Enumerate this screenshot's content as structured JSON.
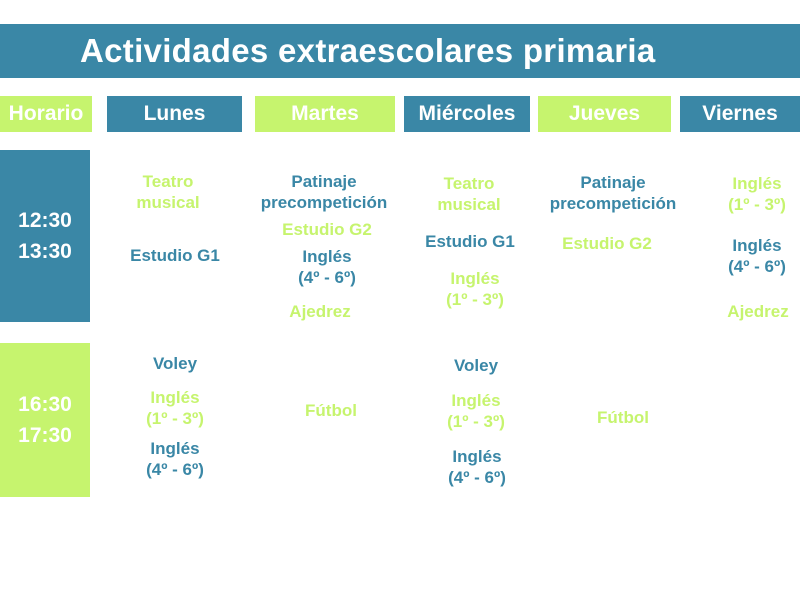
{
  "title": "Actividades extraescolares  primaria",
  "headers": {
    "horario": "Horario",
    "lunes": "Lunes",
    "martes": "Martes",
    "miercoles": "Miércoles",
    "jueves": "Jueves",
    "viernes": "Viernes"
  },
  "times": {
    "midday": {
      "start": "12:30",
      "end": "13:30"
    },
    "afternoon": {
      "start": "16:30",
      "end": "17:30"
    }
  },
  "colors": {
    "blue": "#3a87a6",
    "green": "#c6f46e"
  },
  "midday": {
    "lunes": [
      {
        "text": "Teatro\nmusical",
        "color": "green"
      },
      {
        "text": "Estudio G1",
        "color": "blue"
      }
    ],
    "martes": [
      {
        "text": "Patinaje\nprecompetición",
        "color": "blue"
      },
      {
        "text": "Estudio G2",
        "color": "green"
      },
      {
        "text": "Inglés\n(4º - 6º)",
        "color": "blue"
      },
      {
        "text": "Ajedrez",
        "color": "green"
      }
    ],
    "miercoles": [
      {
        "text": "Teatro\nmusical",
        "color": "green"
      },
      {
        "text": "Estudio G1",
        "color": "blue"
      },
      {
        "text": "Inglés\n(1º - 3º)",
        "color": "green"
      }
    ],
    "jueves": [
      {
        "text": "Patinaje\nprecompetición",
        "color": "blue"
      },
      {
        "text": "Estudio G2",
        "color": "green"
      }
    ],
    "viernes": [
      {
        "text": "Inglés\n(1º - 3º)",
        "color": "green"
      },
      {
        "text": "Inglés\n(4º - 6º)",
        "color": "blue"
      },
      {
        "text": "Ajedrez",
        "color": "green"
      }
    ]
  },
  "afternoon": {
    "lunes": [
      {
        "text": "Voley",
        "color": "blue"
      },
      {
        "text": "Inglés\n(1º - 3º)",
        "color": "green"
      },
      {
        "text": "Inglés\n(4º - 6º)",
        "color": "blue"
      }
    ],
    "martes": [
      {
        "text": "Fútbol",
        "color": "green"
      }
    ],
    "miercoles": [
      {
        "text": "Voley",
        "color": "blue"
      },
      {
        "text": "Inglés\n(1º - 3º)",
        "color": "green"
      },
      {
        "text": "Inglés\n(4º - 6º)",
        "color": "blue"
      }
    ],
    "jueves": [
      {
        "text": "Fútbol",
        "color": "green"
      }
    ]
  }
}
